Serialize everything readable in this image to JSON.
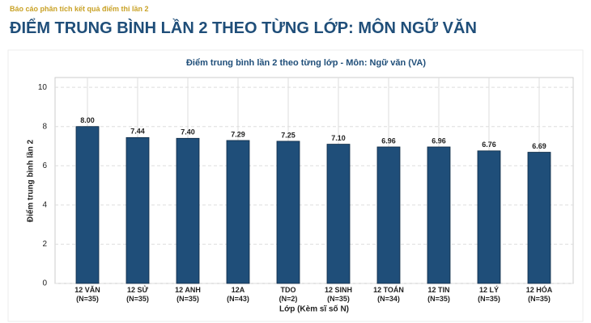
{
  "header": {
    "subtitle": "Báo cáo phân tích kết quả điểm thi lần 2",
    "title": "ĐIỂM TRUNG BÌNH LẦN 2 THEO TỪNG LỚP: MÔN NGỮ VĂN"
  },
  "chart_data": {
    "type": "bar",
    "title": "Điểm trung bình lần 2 theo từng lớp - Môn: Ngữ văn (VA)",
    "x_label": "Lớp (Kèm sĩ số N)",
    "y_label": "Điểm trung bình lần 2",
    "categories": [
      "12 VĂN\n(N=35)",
      "12 SỬ\n(N=35)",
      "12 ANH\n(N=35)",
      "12A\n(N=43)",
      "TDO\n(N=2)",
      "12 SINH\n(N=35)",
      "12 TOÁN\n(N=34)",
      "12 TIN\n(N=35)",
      "12 LÝ\n(N=35)",
      "12 HÓA\n(N=35)"
    ],
    "values": [
      8.0,
      7.44,
      7.4,
      7.29,
      7.25,
      7.1,
      6.96,
      6.96,
      6.76,
      6.69
    ],
    "value_labels": [
      "8.00",
      "7.44",
      "7.40",
      "7.29",
      "7.25",
      "7.10",
      "6.96",
      "6.96",
      "6.76",
      "6.69"
    ],
    "color": "#1f4e79",
    "ylim": [
      0,
      10.5
    ],
    "yticks": [
      0,
      2,
      4,
      6,
      8,
      10
    ],
    "grid": true
  }
}
